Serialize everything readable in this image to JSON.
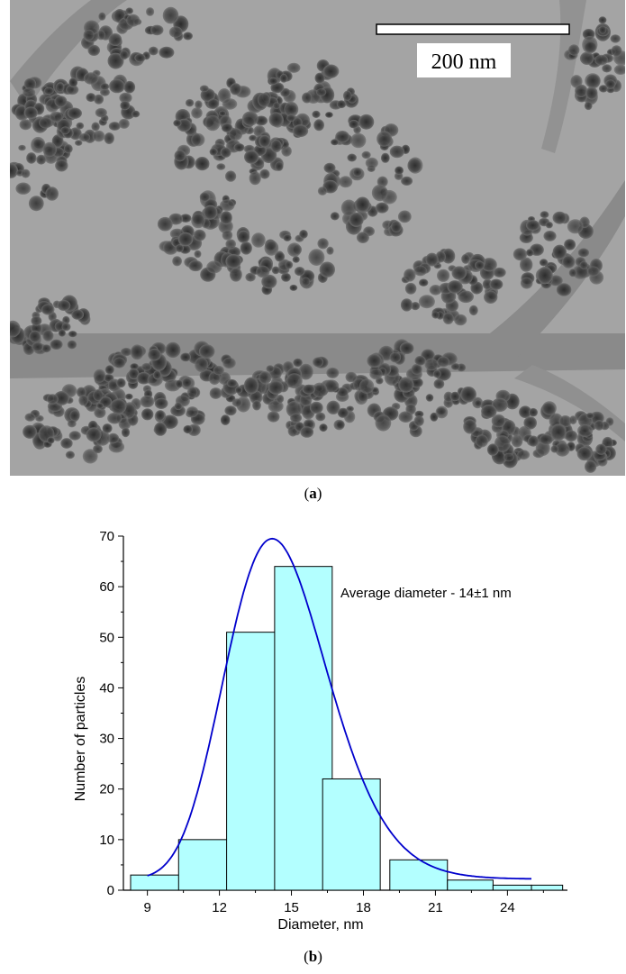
{
  "panel_a": {
    "scale_bar_label": "200 nm",
    "caption_letter": "a"
  },
  "panel_b": {
    "caption_letter": "b"
  },
  "chart_data": {
    "type": "bar",
    "title": "",
    "xlabel": "Diameter, nm",
    "ylabel": "Number of particles",
    "annotation": "Average diameter - 14±1 nm",
    "xlim": [
      8,
      26.5
    ],
    "ylim": [
      0,
      70
    ],
    "x_ticks": [
      9,
      12,
      15,
      18,
      21,
      24
    ],
    "y_ticks": [
      0,
      10,
      20,
      30,
      40,
      50,
      60,
      70
    ],
    "bars": [
      {
        "x0": 8.3,
        "x1": 10.7,
        "value": 3
      },
      {
        "x0": 10.3,
        "x1": 12.7,
        "value": 10
      },
      {
        "x0": 12.3,
        "x1": 14.7,
        "value": 51
      },
      {
        "x0": 14.3,
        "x1": 16.7,
        "value": 64
      },
      {
        "x0": 16.3,
        "x1": 18.7,
        "value": 22
      },
      {
        "x0": 19.1,
        "x1": 21.5,
        "value": 6
      },
      {
        "x0": 21.5,
        "x1": 23.4,
        "value": 2
      },
      {
        "x0": 23.4,
        "x1": 25.0,
        "value": 1
      },
      {
        "x0": 25.0,
        "x1": 26.3,
        "value": 1
      }
    ],
    "fit_curve": {
      "type": "lognormal",
      "baseline": 2.2,
      "peak_x": 14.2,
      "peak_y": 69.5,
      "x_range": [
        9.0,
        25.0
      ]
    },
    "colors": {
      "bar_fill": "#b3ffff",
      "bar_stroke": "#000000",
      "curve": "#0000cc"
    },
    "grid": false
  }
}
